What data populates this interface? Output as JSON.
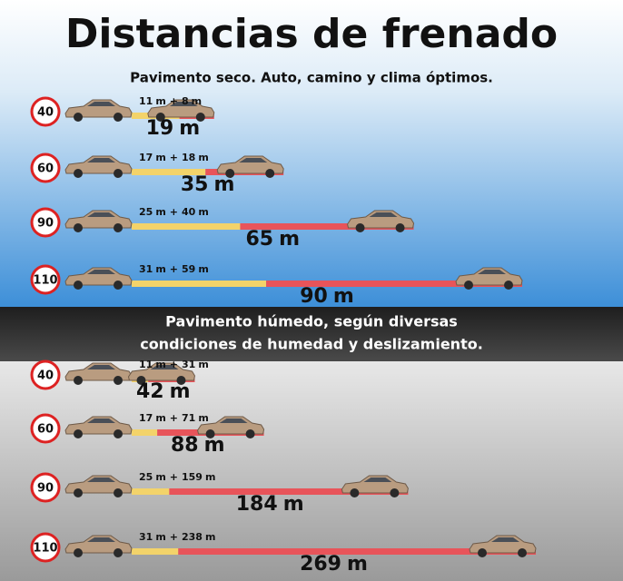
{
  "title": "Distancias de frenado",
  "unit": "m",
  "plus": "+",
  "sections": [
    {
      "subtitle": [
        "Pavimento seco. Auto, camino y clima óptimos."
      ],
      "rows": [
        {
          "speed": 40,
          "reaction": 11,
          "braking": 8,
          "total": 19
        },
        {
          "speed": 60,
          "reaction": 17,
          "braking": 18,
          "total": 35
        },
        {
          "speed": 90,
          "reaction": 25,
          "braking": 40,
          "total": 65
        },
        {
          "speed": 110,
          "reaction": 31,
          "braking": 59,
          "total": 90
        }
      ]
    },
    {
      "subtitle": [
        "Pavimento húmedo, según diversas",
        "condiciones de humedad y deslizamiento."
      ],
      "rows": [
        {
          "speed": 40,
          "reaction": 11,
          "braking": 31,
          "total": 42
        },
        {
          "speed": 60,
          "reaction": 17,
          "braking": 71,
          "total": 88
        },
        {
          "speed": 90,
          "reaction": 25,
          "braking": 159,
          "total": 184
        },
        {
          "speed": 110,
          "reaction": 31,
          "braking": 238,
          "total": 269
        }
      ]
    }
  ]
}
